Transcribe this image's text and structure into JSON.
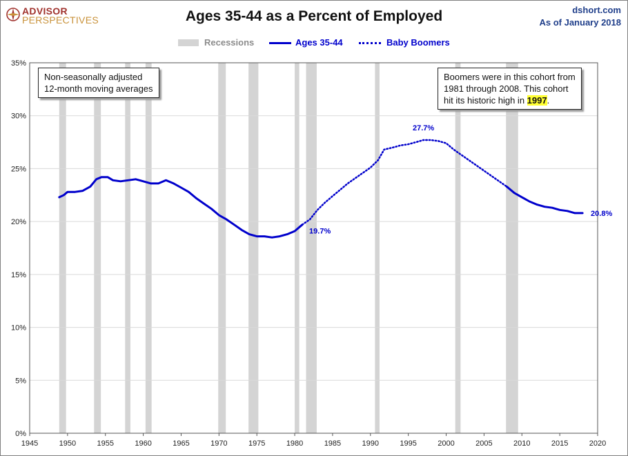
{
  "header": {
    "title": "Ages 35-44 as a Percent of Employed",
    "source_line1": "dshort.com",
    "source_line2": "As of January 2018",
    "logo_line1": "ADVISOR",
    "logo_line2": "PERSPECTIVES"
  },
  "legend": {
    "recessions": "Recessions",
    "ages": "Ages 35-44",
    "boomers": "Baby Boomers"
  },
  "annotations": {
    "left_line1": "Non-seasonally adjusted",
    "left_line2": "12-month moving averages",
    "right_line1": "Boomers were in this cohort from",
    "right_line2": "1981  through 2008.  This cohort",
    "right_line3_pre": "hit its historic high in ",
    "right_line3_hl": "1997",
    "right_line3_post": "."
  },
  "chart_data": {
    "type": "line",
    "title": "Ages 35-44 as a Percent of Employed",
    "xlim": [
      1945,
      2020
    ],
    "ylim": [
      0,
      35
    ],
    "x_ticks": [
      1945,
      1950,
      1955,
      1960,
      1965,
      1970,
      1975,
      1980,
      1985,
      1990,
      1995,
      2000,
      2005,
      2010,
      2015,
      2020
    ],
    "x_tick_labels": [
      "1945",
      "1950",
      "1955",
      "1960",
      "1965",
      "1970",
      "1975",
      "1980",
      "1985",
      "1990",
      "1995",
      "2000",
      "2005",
      "2010",
      "2015",
      "2020"
    ],
    "y_ticks": [
      0,
      5,
      10,
      15,
      20,
      25,
      30,
      35
    ],
    "y_tick_labels": [
      "0%",
      "5%",
      "10%",
      "15%",
      "20%",
      "25%",
      "30%",
      "35%"
    ],
    "grid": true,
    "legend_position": "top-center",
    "recessions": [
      [
        1948.9,
        1949.8
      ],
      [
        1953.5,
        1954.4
      ],
      [
        1957.6,
        1958.3
      ],
      [
        1960.3,
        1961.1
      ],
      [
        1969.9,
        1970.9
      ],
      [
        1973.9,
        1975.2
      ],
      [
        1980.0,
        1980.6
      ],
      [
        1981.5,
        1982.9
      ],
      [
        1990.6,
        1991.2
      ],
      [
        2001.2,
        2001.9
      ],
      [
        2007.9,
        2009.5
      ]
    ],
    "series": [
      {
        "name": "Ages 35-44",
        "style": "solid",
        "color": "#0000cc",
        "points": [
          [
            1948.9,
            22.3
          ],
          [
            1949.5,
            22.5
          ],
          [
            1950.0,
            22.8
          ],
          [
            1951.0,
            22.8
          ],
          [
            1952.0,
            22.9
          ],
          [
            1953.0,
            23.3
          ],
          [
            1953.8,
            24.0
          ],
          [
            1954.5,
            24.2
          ],
          [
            1955.3,
            24.2
          ],
          [
            1956.0,
            23.9
          ],
          [
            1957.0,
            23.8
          ],
          [
            1958.0,
            23.9
          ],
          [
            1959.0,
            24.0
          ],
          [
            1960.0,
            23.8
          ],
          [
            1961.0,
            23.6
          ],
          [
            1962.0,
            23.6
          ],
          [
            1963.0,
            23.9
          ],
          [
            1964.0,
            23.6
          ],
          [
            1965.0,
            23.2
          ],
          [
            1966.0,
            22.8
          ],
          [
            1967.0,
            22.2
          ],
          [
            1968.0,
            21.7
          ],
          [
            1969.0,
            21.2
          ],
          [
            1970.0,
            20.6
          ],
          [
            1971.0,
            20.2
          ],
          [
            1972.0,
            19.7
          ],
          [
            1973.0,
            19.2
          ],
          [
            1974.0,
            18.8
          ],
          [
            1975.0,
            18.6
          ],
          [
            1976.0,
            18.6
          ],
          [
            1977.0,
            18.5
          ],
          [
            1978.0,
            18.6
          ],
          [
            1979.0,
            18.8
          ],
          [
            1980.0,
            19.1
          ],
          [
            1981.0,
            19.7
          ]
        ]
      },
      {
        "name": "Baby Boomers",
        "style": "dotted",
        "color": "#0000cc",
        "points": [
          [
            1981.0,
            19.7
          ],
          [
            1982.0,
            20.2
          ],
          [
            1983.0,
            21.1
          ],
          [
            1984.0,
            21.8
          ],
          [
            1985.0,
            22.4
          ],
          [
            1986.0,
            23.0
          ],
          [
            1987.0,
            23.6
          ],
          [
            1988.0,
            24.1
          ],
          [
            1989.0,
            24.6
          ],
          [
            1990.0,
            25.1
          ],
          [
            1991.0,
            25.8
          ],
          [
            1991.8,
            26.8
          ],
          [
            1993.0,
            27.0
          ],
          [
            1994.0,
            27.2
          ],
          [
            1995.0,
            27.3
          ],
          [
            1996.0,
            27.5
          ],
          [
            1997.0,
            27.7
          ],
          [
            1998.0,
            27.7
          ],
          [
            1999.0,
            27.6
          ],
          [
            2000.0,
            27.4
          ],
          [
            2001.0,
            26.8
          ],
          [
            2002.0,
            26.3
          ],
          [
            2003.0,
            25.8
          ],
          [
            2004.0,
            25.3
          ],
          [
            2005.0,
            24.8
          ],
          [
            2006.0,
            24.3
          ],
          [
            2007.0,
            23.8
          ],
          [
            2008.0,
            23.3
          ]
        ]
      },
      {
        "name": "Ages 35-44",
        "style": "solid",
        "color": "#0000cc",
        "points": [
          [
            2008.0,
            23.3
          ],
          [
            2009.0,
            22.7
          ],
          [
            2010.0,
            22.3
          ],
          [
            2011.0,
            21.9
          ],
          [
            2012.0,
            21.6
          ],
          [
            2013.0,
            21.4
          ],
          [
            2014.0,
            21.3
          ],
          [
            2015.0,
            21.1
          ],
          [
            2016.0,
            21.0
          ],
          [
            2017.0,
            20.8
          ],
          [
            2018.0,
            20.8
          ]
        ]
      }
    ],
    "data_labels": [
      {
        "x": 1981.0,
        "y": 19.7,
        "text": "19.7%"
      },
      {
        "x": 1997.0,
        "y": 27.7,
        "text": "27.7%"
      },
      {
        "x": 2018.0,
        "y": 20.8,
        "text": "20.8%"
      }
    ]
  }
}
